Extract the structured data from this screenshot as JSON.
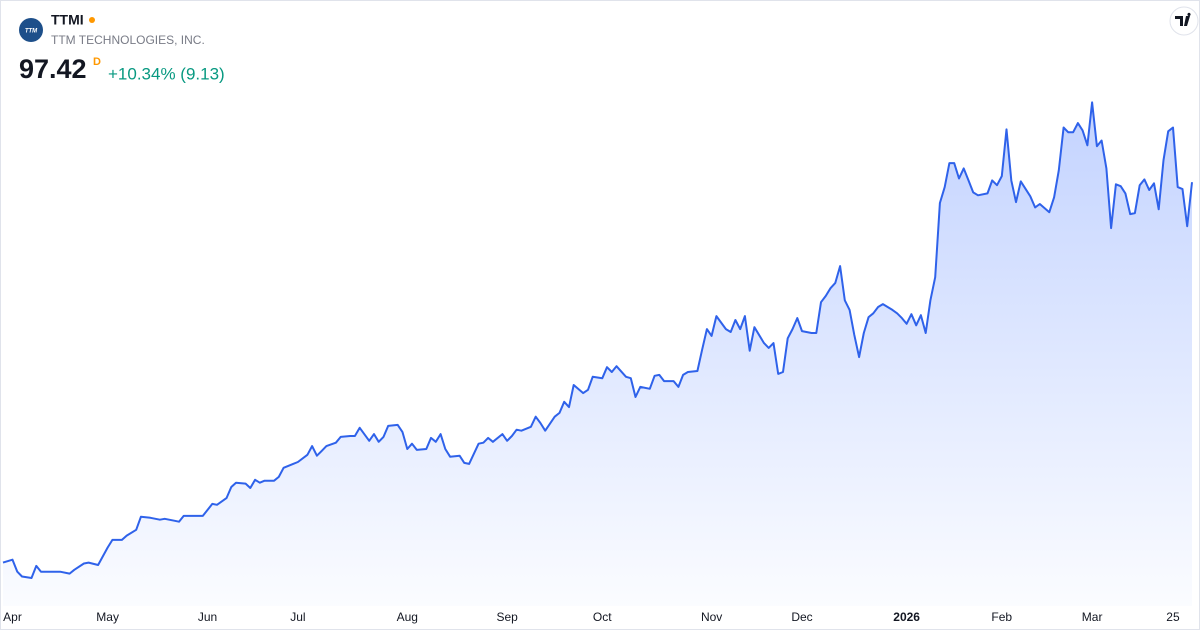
{
  "header": {
    "symbol": "TTMI",
    "logo_text": "TTM",
    "company": "TTM TECHNOLOGIES, INC.",
    "price": 97.42,
    "price_flag": "D",
    "change": "+10.34% (9.13)"
  },
  "chart_data": {
    "type": "area",
    "color": "#2f62ea",
    "xlim": [
      0,
      250
    ],
    "ylim": [
      10,
      117
    ],
    "xticks": [
      {
        "value": 2,
        "label": "Apr"
      },
      {
        "value": 22,
        "label": "May"
      },
      {
        "value": 43,
        "label": "Jun"
      },
      {
        "value": 62,
        "label": "Jul"
      },
      {
        "value": 85,
        "label": "Aug"
      },
      {
        "value": 106,
        "label": "Sep"
      },
      {
        "value": 126,
        "label": "Oct"
      },
      {
        "value": 149,
        "label": "Nov"
      },
      {
        "value": 168,
        "label": "Dec"
      },
      {
        "value": 190,
        "label": "2026"
      },
      {
        "value": 210,
        "label": "Feb"
      },
      {
        "value": 229,
        "label": "Mar"
      },
      {
        "value": 246,
        "label": "25"
      }
    ],
    "x": [
      0,
      2,
      3,
      4,
      6,
      7,
      8,
      10,
      12,
      14,
      15,
      17,
      18,
      20,
      22,
      23,
      25,
      26,
      28,
      29,
      31,
      33,
      34,
      36,
      37,
      38,
      40,
      42,
      44,
      45,
      47,
      48,
      49,
      51,
      52,
      53,
      54,
      55,
      57,
      58,
      59,
      61,
      62,
      64,
      65,
      66,
      67,
      68,
      70,
      71,
      73,
      74,
      75,
      77,
      78,
      79,
      80,
      81,
      83,
      84,
      85,
      86,
      87,
      89,
      90,
      91,
      92,
      93,
      94,
      96,
      97,
      98,
      100,
      101,
      102,
      103,
      105,
      106,
      107,
      108,
      109,
      111,
      112,
      113,
      114,
      116,
      117,
      118,
      119,
      120,
      122,
      123,
      124,
      126,
      127,
      128,
      129,
      131,
      132,
      133,
      134,
      136,
      137,
      138,
      139,
      141,
      142,
      143,
      144,
      146,
      147,
      148,
      149,
      150,
      152,
      153,
      154,
      155,
      156,
      157,
      158,
      160,
      161,
      162,
      163,
      164,
      165,
      166,
      167,
      168,
      170,
      171,
      172,
      173,
      174,
      175,
      176,
      177,
      178,
      179,
      180,
      181,
      182,
      183,
      184,
      185,
      187,
      188,
      189,
      190,
      191,
      192,
      193,
      194,
      195,
      196,
      197,
      198,
      199,
      200,
      201,
      202,
      203,
      204,
      205,
      207,
      208,
      209,
      210,
      211,
      212,
      213,
      214,
      216,
      217,
      218,
      220,
      221,
      222,
      223,
      224,
      225,
      226,
      227,
      228,
      229,
      230,
      231,
      232,
      233,
      234,
      235,
      236,
      237,
      238,
      239,
      240,
      241,
      242,
      243,
      244,
      245,
      246,
      247,
      248,
      249,
      250
    ],
    "values": [
      18.4,
      19.0,
      16.5,
      15.5,
      15.2,
      17.7,
      16.5,
      16.5,
      16.5,
      16.1,
      16.9,
      18.2,
      18.4,
      17.9,
      21.5,
      23.1,
      23.1,
      24.0,
      25.2,
      27.9,
      27.7,
      27.3,
      27.5,
      27.1,
      26.9,
      28.1,
      28.1,
      28.1,
      30.6,
      30.4,
      31.8,
      34.1,
      35.0,
      34.8,
      33.9,
      35.6,
      35.0,
      35.4,
      35.4,
      36.2,
      38.1,
      38.9,
      39.3,
      40.8,
      42.6,
      40.6,
      41.6,
      42.6,
      43.3,
      44.5,
      44.7,
      44.7,
      46.4,
      43.7,
      45.1,
      43.5,
      44.5,
      46.8,
      47.0,
      45.5,
      42.0,
      43.1,
      41.8,
      42.0,
      44.3,
      43.5,
      45.1,
      42.0,
      40.4,
      40.6,
      39.1,
      38.9,
      43.1,
      43.3,
      44.3,
      43.5,
      45.1,
      43.7,
      44.7,
      46.0,
      45.8,
      46.6,
      48.7,
      47.4,
      45.8,
      48.7,
      49.5,
      51.8,
      50.7,
      55.3,
      53.6,
      54.3,
      57.0,
      56.7,
      59.0,
      58.0,
      59.2,
      57.0,
      56.7,
      52.8,
      54.9,
      54.5,
      57.2,
      57.4,
      56.1,
      56.1,
      54.9,
      57.4,
      58.0,
      58.2,
      62.6,
      66.9,
      65.5,
      69.6,
      66.9,
      66.3,
      68.8,
      66.9,
      69.6,
      62.4,
      67.3,
      64.0,
      63.0,
      64.0,
      57.6,
      58.0,
      65.0,
      66.9,
      69.2,
      66.5,
      66.1,
      66.1,
      72.5,
      73.8,
      75.4,
      76.5,
      80.0,
      72.9,
      70.9,
      65.7,
      61.1,
      66.1,
      69.4,
      70.2,
      71.5,
      72.1,
      70.9,
      70.2,
      69.2,
      68.0,
      70.0,
      67.7,
      69.8,
      66.1,
      72.9,
      77.7,
      93.1,
      96.4,
      101.4,
      101.4,
      98.2,
      100.3,
      97.8,
      95.3,
      94.7,
      95.1,
      97.8,
      96.8,
      98.7,
      108.4,
      97.8,
      93.3,
      97.6,
      94.5,
      92.2,
      92.9,
      91.2,
      94.3,
      99.9,
      108.8,
      107.8,
      107.8,
      109.7,
      108.2,
      105.1,
      114.0,
      104.9,
      106.1,
      100.3,
      87.9,
      97.0,
      96.6,
      95.1,
      90.8,
      91.0,
      96.8,
      98.0,
      95.8,
      97.2,
      91.8,
      102.0,
      108.0,
      108.8,
      96.4,
      96.0,
      88.29,
      97.42
    ]
  }
}
